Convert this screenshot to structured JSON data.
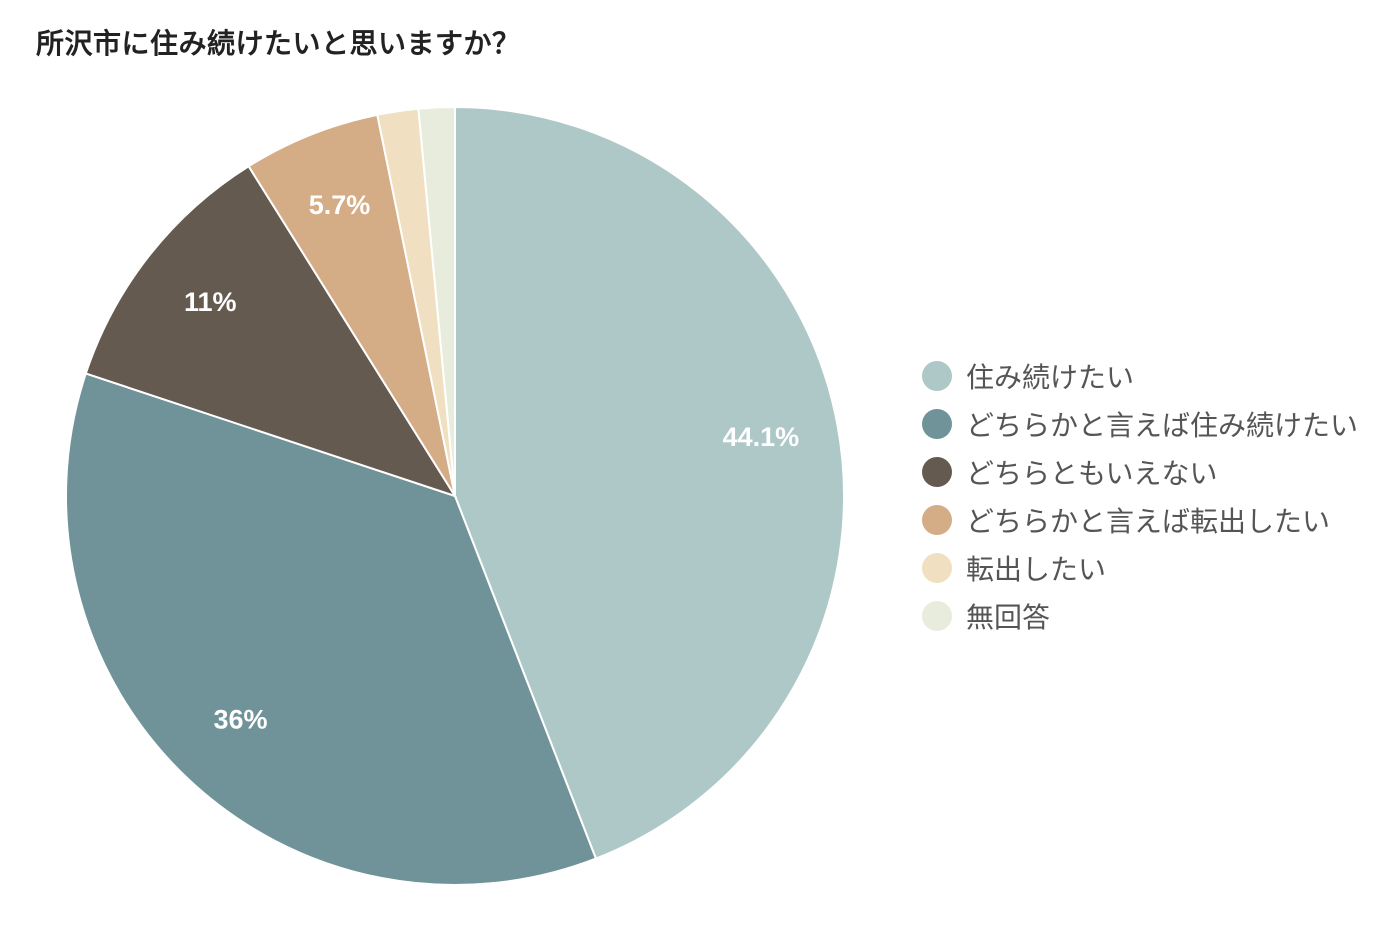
{
  "chart_data": {
    "type": "pie",
    "title": "所沢市に住み続けたいと思いますか？",
    "legend_position": "right",
    "slices": [
      {
        "label": "住み続けたい",
        "value": 44.1,
        "display": "44.1%",
        "color": "#adc8c6"
      },
      {
        "label": "どちらかと言えば住み続けたい",
        "value": 36,
        "display": "36%",
        "color": "#6f9399"
      },
      {
        "label": "どちらともいえない",
        "value": 11,
        "display": "11%",
        "color": "#655a50"
      },
      {
        "label": "どちらかと言えば転出したい",
        "value": 5.7,
        "display": "5.7%",
        "color": "#d4ac86"
      },
      {
        "label": "転出したい",
        "value": 1.7,
        "display": "",
        "color": "#f0dfc0"
      },
      {
        "label": "無回答",
        "value": 1.5,
        "display": "",
        "color": "#e8ecdc"
      }
    ]
  }
}
